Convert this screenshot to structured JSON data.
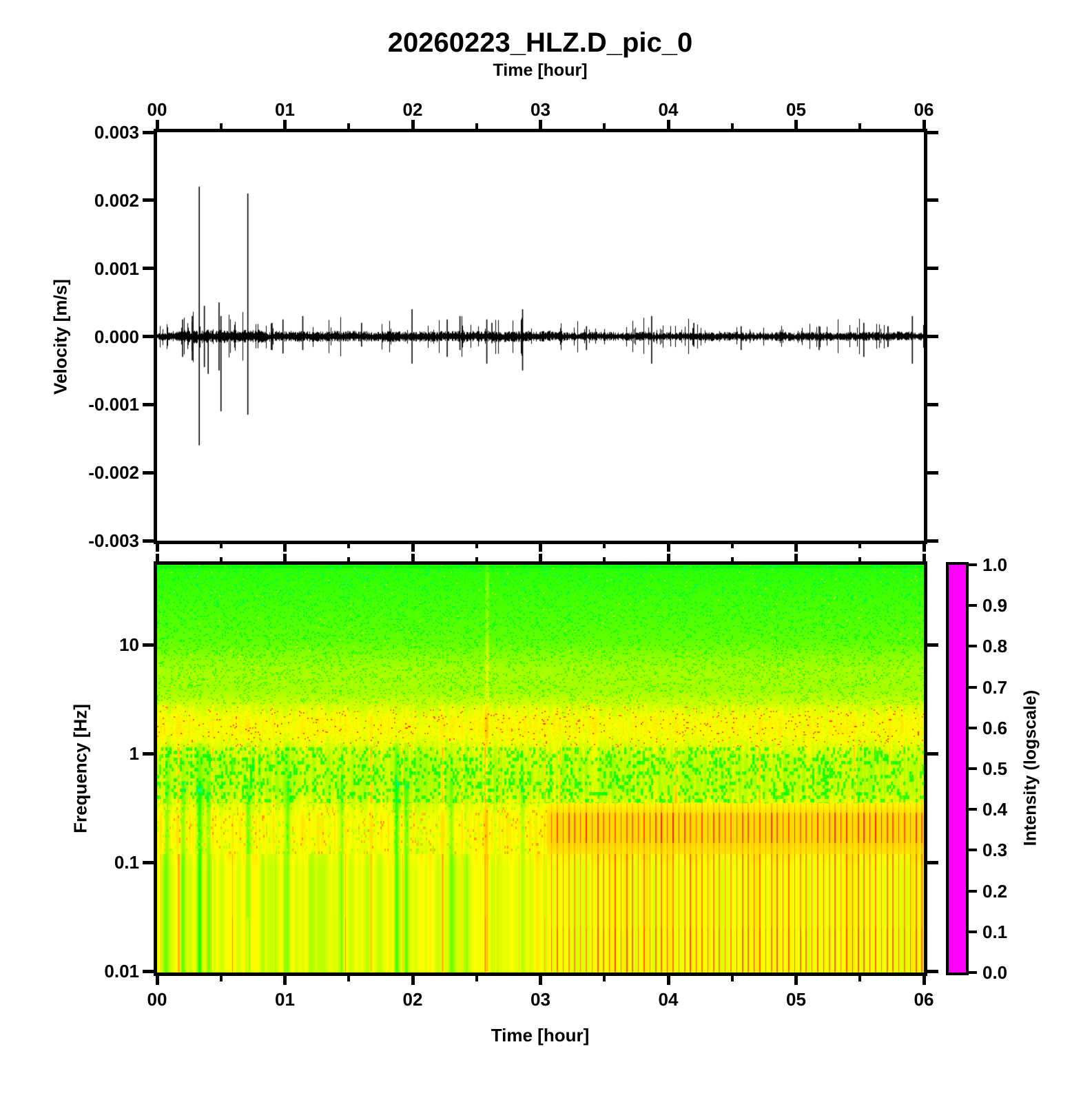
{
  "title": "20260223_HLZ.D_pic_0",
  "axes": {
    "top_label": "Time [hour]",
    "bottom_label": "Time [hour]",
    "velocity_label": "Velocity [m/s]",
    "frequency_label": "Frequency [Hz]",
    "intensity_label": "Intensity (logscale)",
    "hour_ticks": [
      "00",
      "01",
      "02",
      "03",
      "04",
      "05",
      "06"
    ],
    "velocity_ticks": [
      "0.003",
      "0.002",
      "0.001",
      "0.000",
      "-0.001",
      "-0.002",
      "-0.003"
    ],
    "frequency_ticks": [
      "10",
      "1",
      "0.1",
      "0.01"
    ],
    "intensity_ticks": [
      "1.0",
      "0.9",
      "0.8",
      "0.7",
      "0.6",
      "0.5",
      "0.4",
      "0.3",
      "0.2",
      "0.1",
      "0.0"
    ]
  },
  "chart_data": [
    {
      "type": "line",
      "name": "seismic-waveform",
      "title": "20260223_HLZ.D_pic_0",
      "xlabel": "Time [hour]",
      "ylabel": "Velocity [m/s]",
      "xlim": [
        0,
        6
      ],
      "ylim": [
        -0.003,
        0.003
      ],
      "x_tick_labels": [
        "00",
        "01",
        "02",
        "03",
        "04",
        "05",
        "06"
      ],
      "x_minor_tick_hours": 0.5,
      "y_tick_values": [
        0.003,
        0.002,
        0.001,
        0.0,
        -0.001,
        -0.002,
        -0.003
      ],
      "grid": false,
      "line_color": "#000000",
      "noise_envelope": [
        {
          "t0": 0.0,
          "t1": 0.15,
          "amp": 4e-05
        },
        {
          "t0": 0.15,
          "t1": 0.85,
          "amp": 6.5e-05
        },
        {
          "t0": 0.85,
          "t1": 3.1,
          "amp": 5.5e-05
        },
        {
          "t0": 3.1,
          "t1": 6.0,
          "amp": 4.5e-05
        }
      ],
      "spikes": [
        {
          "t": 0.2,
          "up": 0.00025,
          "down": -0.0003
        },
        {
          "t": 0.275,
          "up": 0.0003,
          "down": -0.00035
        },
        {
          "t": 0.33,
          "up": 0.0022,
          "down": -0.0016
        },
        {
          "t": 0.37,
          "up": 0.00045,
          "down": -0.00045
        },
        {
          "t": 0.4,
          "up": 0.0001,
          "down": -0.00055
        },
        {
          "t": 0.485,
          "up": 0.0005,
          "down": -0.0005
        },
        {
          "t": 0.5,
          "up": 0.0003,
          "down": -0.0011
        },
        {
          "t": 0.71,
          "up": 0.0021,
          "down": -0.00115
        },
        {
          "t": 0.9,
          "up": 0.0002,
          "down": -0.0002
        },
        {
          "t": 0.985,
          "up": 0.00025,
          "down": -0.00025
        },
        {
          "t": 1.14,
          "up": 0.0003,
          "down": -0.0002
        },
        {
          "t": 1.6,
          "up": 0.0002,
          "down": -0.00015
        },
        {
          "t": 1.995,
          "up": 0.0004,
          "down": -0.0004
        },
        {
          "t": 2.27,
          "up": 0.00025,
          "down": -0.0003
        },
        {
          "t": 2.37,
          "up": 0.0003,
          "down": -0.0002
        },
        {
          "t": 2.58,
          "up": 0.00025,
          "down": -0.0004
        },
        {
          "t": 2.62,
          "up": 0.0002,
          "down": -0.0001
        },
        {
          "t": 2.86,
          "up": 0.0004,
          "down": -0.0005
        },
        {
          "t": 3.36,
          "up": 0.00015,
          "down": -0.0002
        },
        {
          "t": 3.87,
          "up": 0.0003,
          "down": -0.0004
        },
        {
          "t": 4.2,
          "up": 0.0002,
          "down": -0.00015
        },
        {
          "t": 4.57,
          "up": 0.00015,
          "down": -0.0002
        },
        {
          "t": 5.18,
          "up": 0.00015,
          "down": -0.0002
        },
        {
          "t": 5.53,
          "up": 0.0002,
          "down": -0.0003
        },
        {
          "t": 5.72,
          "up": 0.00015,
          "down": -0.00015
        },
        {
          "t": 5.91,
          "up": 0.0003,
          "down": -0.0004
        }
      ]
    },
    {
      "type": "heatmap",
      "name": "spectrogram",
      "xlabel": "Time [hour]",
      "ylabel": "Frequency [Hz]",
      "xlim": [
        0,
        6
      ],
      "ylim_hz": [
        0.01,
        54
      ],
      "yscale": "log",
      "y_tick_values": [
        10,
        1,
        0.1,
        0.01
      ],
      "colorbar": {
        "label": "Intensity (logscale)",
        "min": 0.0,
        "max": 1.0,
        "tick_values": [
          1.0,
          0.9,
          0.8,
          0.7,
          0.6,
          0.5,
          0.4,
          0.3,
          0.2,
          0.1,
          0.0
        ],
        "colormap_stops": [
          {
            "value": 0.0,
            "color": "#ff00ff"
          },
          {
            "value": 0.2,
            "color": "#0000ff"
          },
          {
            "value": 0.4,
            "color": "#00ffff"
          },
          {
            "value": 0.6,
            "color": "#00ff00"
          },
          {
            "value": 0.8,
            "color": "#ffff00"
          },
          {
            "value": 1.0,
            "color": "#ff0000"
          }
        ]
      },
      "intensity_bands": [
        {
          "f_min": 8.0,
          "f_max": 54.0,
          "intensity": 0.685,
          "texture": "green with dark-green speckle, greener toward top"
        },
        {
          "f_min": 2.8,
          "f_max": 8.0,
          "intensity": 0.73,
          "texture": "yellow-green dense speckle"
        },
        {
          "f_min": 1.15,
          "f_max": 2.8,
          "intensity": 0.8,
          "texture": "bright yellow band with orange-red speckles"
        },
        {
          "f_min": 0.35,
          "f_max": 1.15,
          "intensity": 0.75,
          "texture": "vertical green-dashed striping"
        },
        {
          "f_min": 0.12,
          "f_max": 0.35,
          "intensity": 0.8,
          "texture": "yellow; regular red-orange striping after hour 3"
        },
        {
          "f_min": 0.01,
          "f_max": 0.12,
          "intensity": 0.78,
          "texture": "smooth yellow columns; orange stripe lines after hour 3"
        }
      ],
      "green_event_columns": [
        {
          "t": 0.07,
          "strength": 0.08
        },
        {
          "t": 0.2,
          "strength": 0.1
        },
        {
          "t": 0.33,
          "strength": 0.16
        },
        {
          "t": 0.4,
          "strength": 0.08
        },
        {
          "t": 0.71,
          "strength": 0.14
        },
        {
          "t": 1.02,
          "strength": 0.1
        },
        {
          "t": 1.44,
          "strength": 0.08
        },
        {
          "t": 1.87,
          "strength": 0.13
        },
        {
          "t": 1.95,
          "strength": 0.12
        },
        {
          "t": 2.3,
          "strength": 0.1
        },
        {
          "t": 2.86,
          "strength": 0.07
        }
      ],
      "yellow_event_columns": [
        {
          "t": 2.58,
          "strength": 0.06
        }
      ],
      "texture_change_hour": 3.05
    }
  ]
}
